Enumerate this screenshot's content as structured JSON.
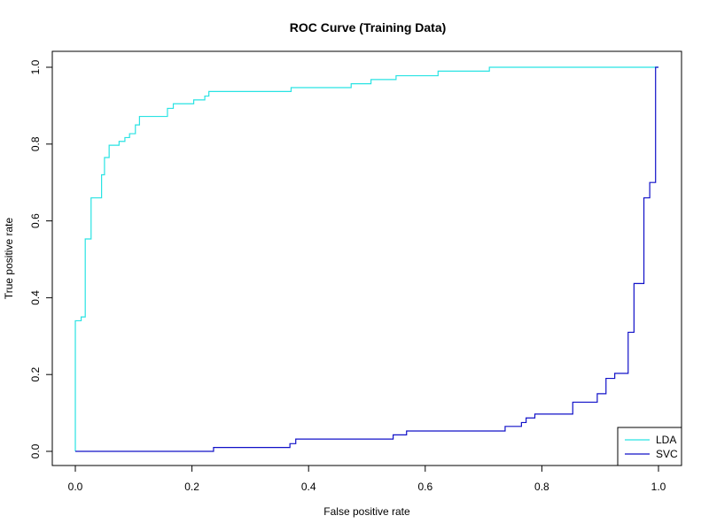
{
  "chart_data": {
    "type": "line",
    "title": "ROC Curve (Training Data)",
    "xlabel": "False positive rate",
    "ylabel": "True positive rate",
    "xlim": [
      0,
      1
    ],
    "ylim": [
      0,
      1
    ],
    "xticks": [
      "0.0",
      "0.2",
      "0.4",
      "0.6",
      "0.8",
      "1.0"
    ],
    "yticks": [
      "0.0",
      "0.2",
      "0.4",
      "0.6",
      "0.8",
      "1.0"
    ],
    "grid": false,
    "legend_position": "bottom-right",
    "series": [
      {
        "name": "LDA",
        "color": "#29e3e3",
        "points": [
          [
            0.0,
            0.0
          ],
          [
            0.0,
            0.34
          ],
          [
            0.01,
            0.34
          ],
          [
            0.01,
            0.35
          ],
          [
            0.017,
            0.35
          ],
          [
            0.017,
            0.553
          ],
          [
            0.027,
            0.553
          ],
          [
            0.027,
            0.66
          ],
          [
            0.045,
            0.66
          ],
          [
            0.045,
            0.72
          ],
          [
            0.05,
            0.72
          ],
          [
            0.05,
            0.765
          ],
          [
            0.058,
            0.765
          ],
          [
            0.058,
            0.797
          ],
          [
            0.075,
            0.797
          ],
          [
            0.075,
            0.807
          ],
          [
            0.085,
            0.807
          ],
          [
            0.085,
            0.817
          ],
          [
            0.093,
            0.817
          ],
          [
            0.093,
            0.827
          ],
          [
            0.103,
            0.827
          ],
          [
            0.103,
            0.85
          ],
          [
            0.11,
            0.85
          ],
          [
            0.11,
            0.872
          ],
          [
            0.158,
            0.872
          ],
          [
            0.158,
            0.893
          ],
          [
            0.168,
            0.893
          ],
          [
            0.168,
            0.905
          ],
          [
            0.203,
            0.905
          ],
          [
            0.203,
            0.915
          ],
          [
            0.222,
            0.915
          ],
          [
            0.222,
            0.925
          ],
          [
            0.229,
            0.925
          ],
          [
            0.229,
            0.937
          ],
          [
            0.37,
            0.937
          ],
          [
            0.37,
            0.947
          ],
          [
            0.473,
            0.947
          ],
          [
            0.473,
            0.957
          ],
          [
            0.507,
            0.957
          ],
          [
            0.507,
            0.968
          ],
          [
            0.55,
            0.968
          ],
          [
            0.55,
            0.978
          ],
          [
            0.622,
            0.978
          ],
          [
            0.622,
            0.99
          ],
          [
            0.71,
            0.99
          ],
          [
            0.71,
            1.0
          ],
          [
            1.0,
            1.0
          ]
        ]
      },
      {
        "name": "SVC",
        "color": "#1010c8",
        "points": [
          [
            0.0,
            0.0
          ],
          [
            0.237,
            0.0
          ],
          [
            0.237,
            0.01
          ],
          [
            0.368,
            0.01
          ],
          [
            0.368,
            0.02
          ],
          [
            0.378,
            0.02
          ],
          [
            0.378,
            0.032
          ],
          [
            0.545,
            0.032
          ],
          [
            0.545,
            0.043
          ],
          [
            0.568,
            0.043
          ],
          [
            0.568,
            0.053
          ],
          [
            0.737,
            0.053
          ],
          [
            0.737,
            0.065
          ],
          [
            0.765,
            0.065
          ],
          [
            0.765,
            0.075
          ],
          [
            0.773,
            0.075
          ],
          [
            0.773,
            0.087
          ],
          [
            0.788,
            0.087
          ],
          [
            0.788,
            0.097
          ],
          [
            0.853,
            0.097
          ],
          [
            0.853,
            0.128
          ],
          [
            0.895,
            0.128
          ],
          [
            0.895,
            0.15
          ],
          [
            0.91,
            0.15
          ],
          [
            0.91,
            0.19
          ],
          [
            0.925,
            0.19
          ],
          [
            0.925,
            0.203
          ],
          [
            0.948,
            0.203
          ],
          [
            0.948,
            0.31
          ],
          [
            0.958,
            0.31
          ],
          [
            0.958,
            0.437
          ],
          [
            0.975,
            0.437
          ],
          [
            0.975,
            0.66
          ],
          [
            0.985,
            0.66
          ],
          [
            0.985,
            0.7
          ],
          [
            0.995,
            0.7
          ],
          [
            0.995,
            1.0
          ],
          [
            1.0,
            1.0
          ]
        ]
      }
    ]
  }
}
